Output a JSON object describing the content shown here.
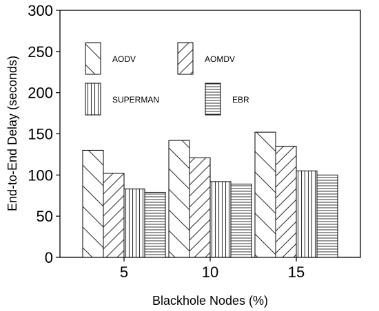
{
  "chart_data": {
    "type": "bar",
    "xlabel": "Blackhole Nodes (%)",
    "ylabel": "End-to-End Delay (seconds)",
    "categories": [
      "5",
      "10",
      "15"
    ],
    "ylim": [
      0,
      300
    ],
    "yticks": [
      "0",
      "50",
      "100",
      "150",
      "200",
      "250",
      "300"
    ],
    "grid": false,
    "legend_placement": "top-left, inside plot",
    "series": [
      {
        "name": "AODV",
        "pattern": "backslash-hatch",
        "values": [
          130,
          142,
          152
        ]
      },
      {
        "name": "AOMDV",
        "pattern": "slash-hatch",
        "values": [
          102,
          121,
          135
        ]
      },
      {
        "name": "SUPERMAN",
        "pattern": "vertical-lines",
        "values": [
          83,
          92,
          105
        ]
      },
      {
        "name": "EBR",
        "pattern": "horizontal-lines",
        "values": [
          79,
          89,
          100
        ]
      }
    ]
  }
}
